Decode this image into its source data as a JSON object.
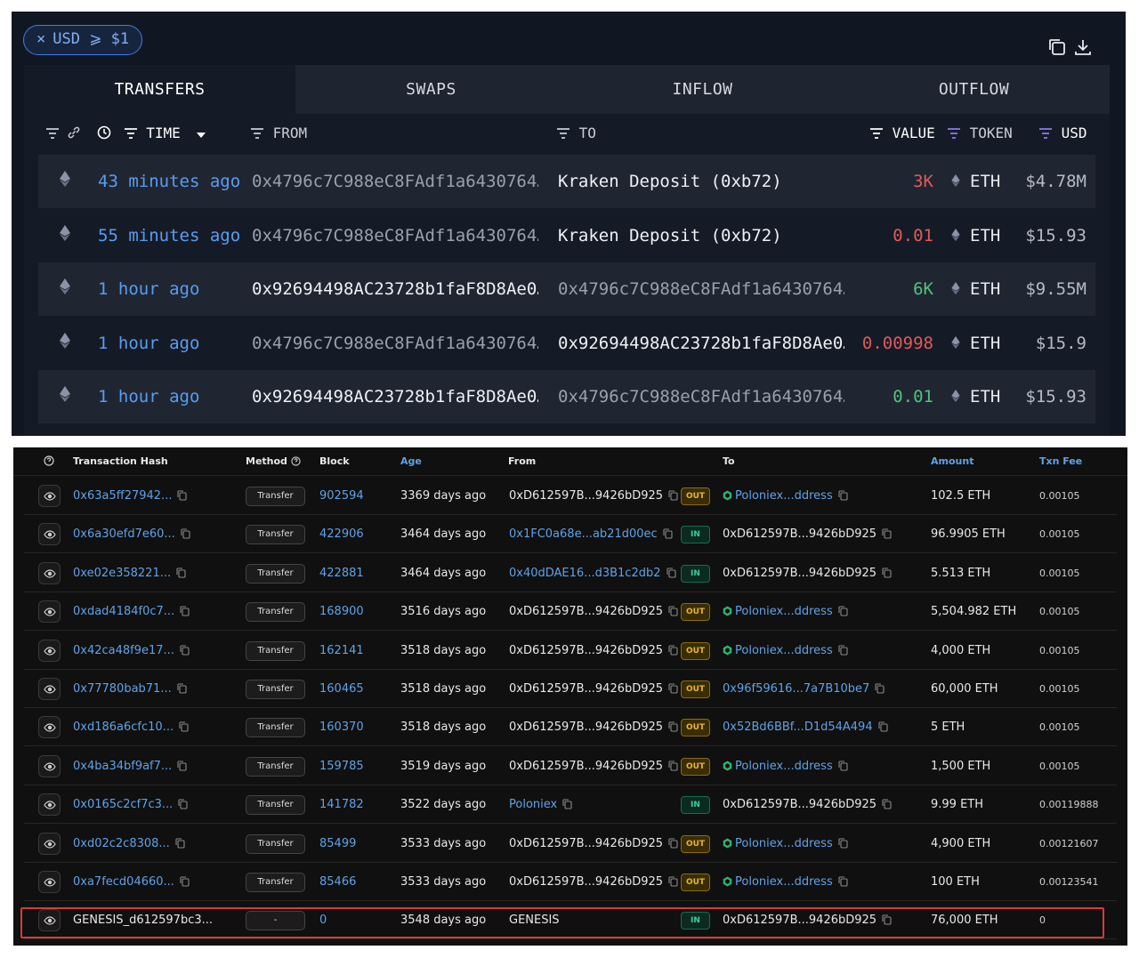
{
  "top_panel": {
    "filter_chip": {
      "close": "×",
      "label": "USD ⩾ $1"
    },
    "icons": [
      "copy-icon",
      "download-icon"
    ],
    "tabs": [
      {
        "label": "TRANSFERS",
        "active": true
      },
      {
        "label": "SWAPS",
        "active": false
      },
      {
        "label": "INFLOW",
        "active": false
      },
      {
        "label": "OUTFLOW",
        "active": false
      }
    ],
    "headers": {
      "time": "TIME",
      "from": "FROM",
      "to": "TO",
      "value": "VALUE",
      "token": "TOKEN",
      "usd": "USD"
    },
    "rows": [
      {
        "time": "43 minutes ago",
        "from": "0x4796c7C988eC8FAdf1a6430764…",
        "to": "Kraken Deposit (0xb72)",
        "value": "3K",
        "value_color": "red",
        "token": "ETH",
        "usd": "$4.78M"
      },
      {
        "time": "55 minutes ago",
        "from": "0x4796c7C988eC8FAdf1a6430764…",
        "to": "Kraken Deposit (0xb72)",
        "value": "0.01",
        "value_color": "red",
        "token": "ETH",
        "usd": "$15.93"
      },
      {
        "time": "1 hour ago",
        "from": "0x92694498AC23728b1faF8D8Ae0…",
        "to": "0x4796c7C988eC8FAdf1a6430764…",
        "value": "6K",
        "value_color": "green",
        "token": "ETH",
        "usd": "$9.55M"
      },
      {
        "time": "1 hour ago",
        "from": "0x4796c7C988eC8FAdf1a6430764…",
        "to": "0x92694498AC23728b1faF8D8Ae0…",
        "value": "0.00998",
        "value_color": "red",
        "token": "ETH",
        "usd": "$15.9"
      },
      {
        "time": "1 hour ago",
        "from": "0x92694498AC23728b1faF8D8Ae0…",
        "to": "0x4796c7C988eC8FAdf1a6430764…",
        "value": "0.01",
        "value_color": "green",
        "token": "ETH",
        "usd": "$15.93"
      }
    ]
  },
  "bottom_panel": {
    "headers": {
      "tx_hash": "Transaction Hash",
      "method": "Method",
      "block": "Block",
      "age": "Age",
      "from": "From",
      "to": "To",
      "amount": "Amount",
      "txn_fee": "Txn Fee"
    },
    "rows": [
      {
        "hash": "0x63a5ff27942...",
        "method": "Transfer",
        "block": "902594",
        "age": "3369 days ago",
        "from": "0xD612597B...9426bD925",
        "from_link": false,
        "dir": "OUT",
        "to": "Poloniex...ddress",
        "to_link": true,
        "to_contract": true,
        "amount": "102.5 ETH",
        "fee": "0.00105"
      },
      {
        "hash": "0x6a30efd7e60...",
        "method": "Transfer",
        "block": "422906",
        "age": "3464 days ago",
        "from": "0x1FC0a68e...ab21d00ec",
        "from_link": true,
        "dir": "IN",
        "to": "0xD612597B...9426bD925",
        "to_link": false,
        "to_contract": false,
        "amount": "96.9905 ETH",
        "fee": "0.00105"
      },
      {
        "hash": "0xe02e358221...",
        "method": "Transfer",
        "block": "422881",
        "age": "3464 days ago",
        "from": "0x40dDAE16...d3B1c2db2",
        "from_link": true,
        "dir": "IN",
        "to": "0xD612597B...9426bD925",
        "to_link": false,
        "to_contract": false,
        "amount": "5.513 ETH",
        "fee": "0.00105"
      },
      {
        "hash": "0xdad4184f0c7...",
        "method": "Transfer",
        "block": "168900",
        "age": "3516 days ago",
        "from": "0xD612597B...9426bD925",
        "from_link": false,
        "dir": "OUT",
        "to": "Poloniex...ddress",
        "to_link": true,
        "to_contract": true,
        "amount": "5,504.982 ETH",
        "fee": "0.00105"
      },
      {
        "hash": "0x42ca48f9e17...",
        "method": "Transfer",
        "block": "162141",
        "age": "3518 days ago",
        "from": "0xD612597B...9426bD925",
        "from_link": false,
        "dir": "OUT",
        "to": "Poloniex...ddress",
        "to_link": true,
        "to_contract": true,
        "amount": "4,000 ETH",
        "fee": "0.00105"
      },
      {
        "hash": "0x77780bab71...",
        "method": "Transfer",
        "block": "160465",
        "age": "3518 days ago",
        "from": "0xD612597B...9426bD925",
        "from_link": false,
        "dir": "OUT",
        "to": "0x96f59616...7a7B10be7",
        "to_link": true,
        "to_contract": false,
        "amount": "60,000 ETH",
        "fee": "0.00105"
      },
      {
        "hash": "0xd186a6cfc10...",
        "method": "Transfer",
        "block": "160370",
        "age": "3518 days ago",
        "from": "0xD612597B...9426bD925",
        "from_link": false,
        "dir": "OUT",
        "to": "0x52Bd6BBf...D1d54A494",
        "to_link": true,
        "to_contract": false,
        "amount": "5 ETH",
        "fee": "0.00105"
      },
      {
        "hash": "0x4ba34bf9af7...",
        "method": "Transfer",
        "block": "159785",
        "age": "3519 days ago",
        "from": "0xD612597B...9426bD925",
        "from_link": false,
        "dir": "OUT",
        "to": "Poloniex...ddress",
        "to_link": true,
        "to_contract": true,
        "amount": "1,500 ETH",
        "fee": "0.00105"
      },
      {
        "hash": "0x0165c2cf7c3...",
        "method": "Transfer",
        "block": "141782",
        "age": "3522 days ago",
        "from": "Poloniex",
        "from_link": true,
        "dir": "IN",
        "to": "0xD612597B...9426bD925",
        "to_link": false,
        "to_contract": false,
        "amount": "9.99 ETH",
        "fee": "0.00119888"
      },
      {
        "hash": "0xd02c2c8308...",
        "method": "Transfer",
        "block": "85499",
        "age": "3533 days ago",
        "from": "0xD612597B...9426bD925",
        "from_link": false,
        "dir": "OUT",
        "to": "Poloniex...ddress",
        "to_link": true,
        "to_contract": true,
        "amount": "4,900 ETH",
        "fee": "0.00121607"
      },
      {
        "hash": "0xa7fecd04660...",
        "method": "Transfer",
        "block": "85466",
        "age": "3533 days ago",
        "from": "0xD612597B...9426bD925",
        "from_link": false,
        "dir": "OUT",
        "to": "Poloniex...ddress",
        "to_link": true,
        "to_contract": true,
        "amount": "100 ETH",
        "fee": "0.00123541"
      },
      {
        "hash": "GENESIS_d612597bc3...",
        "method": "-",
        "block": "0",
        "age": "3548 days ago",
        "from": "GENESIS",
        "from_link": false,
        "dir": "IN",
        "to": "0xD612597B...9426bD925",
        "to_link": false,
        "to_contract": false,
        "amount": "76,000 ETH",
        "fee": "0",
        "hash_plain": true,
        "no_copy_hash": true
      }
    ]
  },
  "colors": {
    "accent_blue": "#5b9cf0",
    "out_badge": "#e8b52c",
    "in_badge": "#3ccf95",
    "highlight": "#d63a3a"
  }
}
